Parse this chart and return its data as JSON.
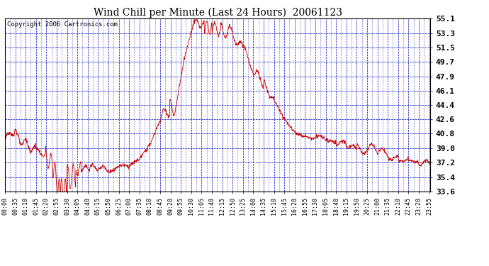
{
  "title": "Wind Chill per Minute (Last 24 Hours)  20061123",
  "copyright": "Copyright 2006 Cartronics.com",
  "y_ticks": [
    33.6,
    35.4,
    37.2,
    39.0,
    40.8,
    42.6,
    44.4,
    46.1,
    47.9,
    49.7,
    51.5,
    53.3,
    55.1
  ],
  "y_min": 33.6,
  "y_max": 55.1,
  "line_color": "#cc0000",
  "grid_color": "#0000bb",
  "background_color": "#ffffff",
  "title_fontsize": 10,
  "copyright_fontsize": 6.5,
  "tick_fontsize": 6,
  "ytick_fontsize": 8
}
